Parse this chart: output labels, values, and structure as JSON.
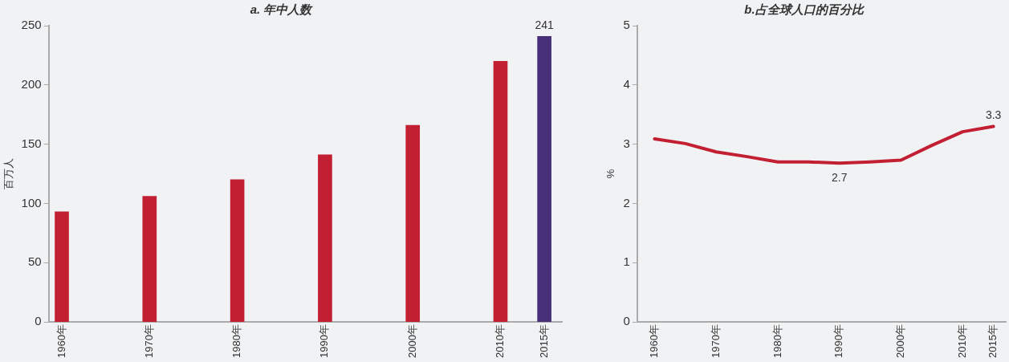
{
  "chart_data": [
    {
      "type": "bar",
      "title": "a. 年中人数",
      "ylabel": "百万人",
      "x": [
        1960,
        1970,
        1980,
        1990,
        2000,
        2010,
        2015
      ],
      "values": [
        93,
        106,
        120,
        141,
        166,
        220,
        241
      ],
      "colors": [
        "#c21f33",
        "#c21f33",
        "#c21f33",
        "#c21f33",
        "#c21f33",
        "#c21f33",
        "#472f7a"
      ],
      "value_labels": [
        null,
        null,
        null,
        null,
        null,
        null,
        "241"
      ],
      "xlim": [
        1958.5,
        2017
      ],
      "xticks": [
        {
          "value": 1960,
          "label": "1960年"
        },
        {
          "value": 1970,
          "label": "1970年"
        },
        {
          "value": 1980,
          "label": "1980年"
        },
        {
          "value": 1990,
          "label": "1990年"
        },
        {
          "value": 2000,
          "label": "2000年"
        },
        {
          "value": 2010,
          "label": "2010年"
        },
        {
          "value": 2015,
          "label": "2015年"
        }
      ],
      "ylim": [
        0,
        250
      ],
      "yticks": [
        0,
        50,
        100,
        150,
        200,
        250
      ],
      "grid": false,
      "legend": false
    },
    {
      "type": "line",
      "title": "b.占全球人口的百分比",
      "ylabel": "%",
      "x": [
        1960,
        1965,
        1970,
        1975,
        1980,
        1985,
        1990,
        1995,
        2000,
        2005,
        2010,
        2015
      ],
      "series": [
        {
          "color": "#c21f33",
          "values": [
            3.09,
            3.01,
            2.87,
            2.79,
            2.7,
            2.7,
            2.68,
            2.7,
            2.73,
            2.98,
            3.21,
            3.3
          ],
          "value_labels": [
            null,
            null,
            null,
            null,
            null,
            null,
            "2.7",
            null,
            null,
            null,
            null,
            "3.3"
          ]
        }
      ],
      "xlim": [
        1957.2,
        2017
      ],
      "xticks": [
        {
          "value": 1960,
          "label": "1960年"
        },
        {
          "value": 1970,
          "label": "1970年"
        },
        {
          "value": 1980,
          "label": "1980年"
        },
        {
          "value": 1990,
          "label": "1990年"
        },
        {
          "value": 2000,
          "label": "2000年"
        },
        {
          "value": 2010,
          "label": "2010年"
        },
        {
          "value": 2015,
          "label": "2015年"
        }
      ],
      "ylim": [
        0,
        5
      ],
      "yticks": [
        0,
        1,
        2,
        3,
        4,
        5
      ],
      "marker": "none",
      "line_style": "solid",
      "grid": false,
      "legend": false
    }
  ]
}
